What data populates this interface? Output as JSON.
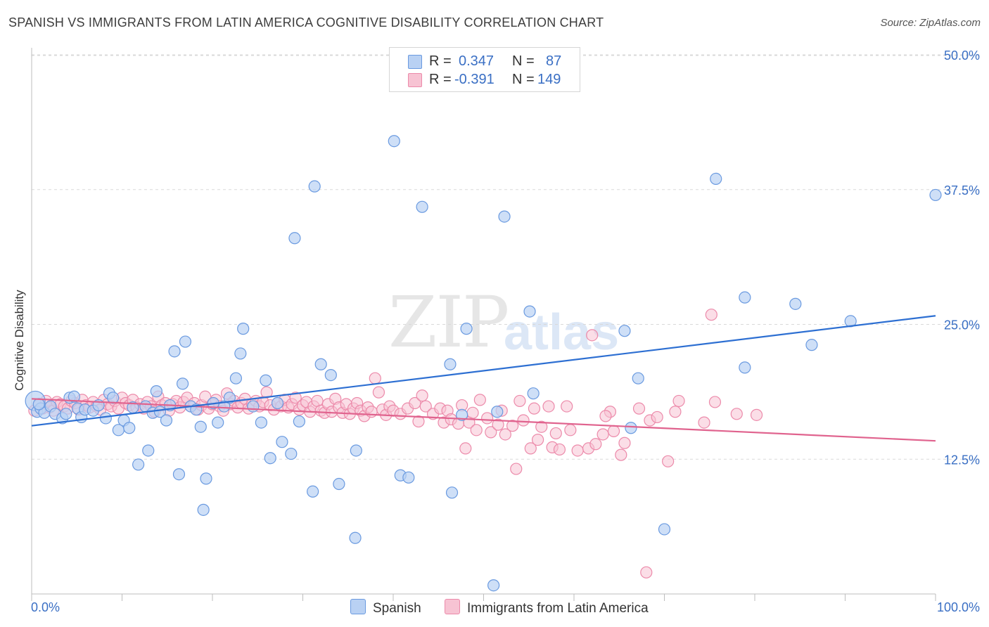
{
  "header": {
    "title": "SPANISH VS IMMIGRANTS FROM LATIN AMERICA COGNITIVE DISABILITY CORRELATION CHART",
    "source": "Source: ZipAtlas.com"
  },
  "watermark": {
    "zip": "ZIP",
    "atlas": "atlas"
  },
  "legend": {
    "series1": {
      "r_label": "R = ",
      "r_value": "0.347",
      "n_label": "N = ",
      "n_value": "87"
    },
    "series2": {
      "r_label": "R = ",
      "r_value": "-0.391",
      "n_label": "N = ",
      "n_value": "149"
    }
  },
  "bottom_legend": {
    "spanish": "Spanish",
    "immigrants": "Immigrants from Latin America"
  },
  "colors": {
    "blue_fill": "#b9d1f3",
    "blue_stroke": "#6a9ae0",
    "blue_line": "#2d6fd2",
    "pink_fill": "#f7c3d3",
    "pink_stroke": "#ec8aaa",
    "pink_line": "#e0638e",
    "tick_text": "#3a6fc4",
    "grid": "#d9d9d9"
  },
  "chart_data": {
    "type": "scatter",
    "title": "SPANISH VS IMMIGRANTS FROM LATIN AMERICA COGNITIVE DISABILITY CORRELATION CHART",
    "xlabel": "",
    "ylabel": "Cognitive Disability",
    "xlim": [
      0,
      100
    ],
    "ylim": [
      0,
      52
    ],
    "x_tick_labels": [
      "0.0%",
      "100.0%"
    ],
    "y_ticks": [
      12.5,
      25.0,
      37.5,
      50.0
    ],
    "y_tick_labels": [
      "12.5%",
      "25.0%",
      "37.5%",
      "50.0%"
    ],
    "grid": true,
    "legend_position": "top-center",
    "series": [
      {
        "name": "Spanish",
        "r": 0.347,
        "n": 87,
        "trend": {
          "x": [
            0,
            100
          ],
          "y": [
            15.6,
            25.8
          ]
        },
        "points": [
          [
            0.4,
            17.9
          ],
          [
            0.6,
            16.9
          ],
          [
            1.0,
            17.2
          ],
          [
            1.4,
            16.8
          ],
          [
            2.1,
            17.4
          ],
          [
            2.6,
            16.7
          ],
          [
            3.4,
            16.3
          ],
          [
            3.8,
            16.7
          ],
          [
            4.2,
            18.2
          ],
          [
            4.7,
            18.3
          ],
          [
            5.1,
            17.2
          ],
          [
            5.5,
            16.4
          ],
          [
            5.9,
            17.1
          ],
          [
            6.8,
            17.0
          ],
          [
            7.4,
            17.5
          ],
          [
            8.2,
            16.3
          ],
          [
            8.6,
            18.6
          ],
          [
            9.0,
            18.2
          ],
          [
            9.6,
            15.2
          ],
          [
            10.2,
            16.1
          ],
          [
            10.8,
            15.4
          ],
          [
            11.2,
            17.3
          ],
          [
            11.8,
            12.0
          ],
          [
            12.6,
            17.4
          ],
          [
            12.9,
            13.3
          ],
          [
            13.4,
            16.8
          ],
          [
            13.8,
            18.8
          ],
          [
            14.2,
            16.9
          ],
          [
            14.9,
            16.1
          ],
          [
            15.3,
            17.5
          ],
          [
            15.8,
            22.5
          ],
          [
            16.3,
            11.1
          ],
          [
            16.7,
            19.5
          ],
          [
            17.0,
            23.4
          ],
          [
            17.6,
            17.4
          ],
          [
            18.2,
            17.1
          ],
          [
            18.7,
            15.5
          ],
          [
            19.0,
            7.8
          ],
          [
            19.3,
            10.7
          ],
          [
            20.1,
            17.7
          ],
          [
            20.6,
            15.9
          ],
          [
            21.3,
            17.4
          ],
          [
            21.9,
            18.2
          ],
          [
            22.6,
            20.0
          ],
          [
            23.1,
            22.3
          ],
          [
            23.4,
            24.6
          ],
          [
            24.5,
            17.4
          ],
          [
            25.4,
            15.9
          ],
          [
            25.9,
            19.8
          ],
          [
            26.4,
            12.6
          ],
          [
            27.2,
            17.7
          ],
          [
            27.7,
            14.1
          ],
          [
            28.7,
            13.0
          ],
          [
            29.1,
            33.0
          ],
          [
            29.6,
            16.0
          ],
          [
            31.1,
            9.5
          ],
          [
            31.3,
            37.8
          ],
          [
            32.0,
            21.3
          ],
          [
            33.1,
            20.3
          ],
          [
            34.0,
            10.2
          ],
          [
            35.8,
            5.2
          ],
          [
            35.9,
            13.3
          ],
          [
            40.1,
            42.0
          ],
          [
            40.8,
            11.0
          ],
          [
            41.7,
            10.8
          ],
          [
            43.2,
            35.9
          ],
          [
            46.3,
            21.3
          ],
          [
            46.5,
            9.4
          ],
          [
            47.6,
            16.6
          ],
          [
            48.1,
            24.6
          ],
          [
            51.1,
            0.8
          ],
          [
            51.5,
            16.9
          ],
          [
            52.3,
            35.0
          ],
          [
            55.1,
            26.2
          ],
          [
            55.5,
            18.6
          ],
          [
            65.6,
            24.4
          ],
          [
            66.3,
            15.4
          ],
          [
            67.1,
            20.0
          ],
          [
            70.0,
            6.0
          ],
          [
            75.7,
            38.5
          ],
          [
            78.9,
            27.5
          ],
          [
            78.9,
            21.0
          ],
          [
            84.5,
            26.9
          ],
          [
            86.3,
            23.1
          ],
          [
            90.6,
            25.3
          ],
          [
            100.0,
            37.0
          ],
          [
            0.8,
            17.6
          ]
        ]
      },
      {
        "name": "Immigrants from Latin America",
        "r": -0.391,
        "n": 149,
        "trend": {
          "x": [
            0,
            100
          ],
          "y": [
            18.1,
            14.2
          ]
        },
        "points": [
          [
            0.3,
            17.0
          ],
          [
            0.8,
            17.5
          ],
          [
            1.2,
            17.2
          ],
          [
            1.6,
            17.9
          ],
          [
            2.0,
            17.3
          ],
          [
            2.4,
            17.0
          ],
          [
            2.8,
            17.8
          ],
          [
            3.2,
            17.6
          ],
          [
            3.6,
            17.4
          ],
          [
            4.0,
            17.2
          ],
          [
            4.4,
            17.9
          ],
          [
            4.8,
            17.7
          ],
          [
            5.2,
            17.1
          ],
          [
            5.6,
            18.0
          ],
          [
            6.0,
            17.5
          ],
          [
            6.4,
            17.3
          ],
          [
            6.8,
            17.8
          ],
          [
            7.2,
            17.4
          ],
          [
            7.6,
            17.1
          ],
          [
            8.0,
            18.0
          ],
          [
            8.4,
            17.6
          ],
          [
            8.8,
            17.4
          ],
          [
            9.2,
            17.9
          ],
          [
            9.6,
            17.2
          ],
          [
            10.0,
            18.2
          ],
          [
            10.4,
            17.7
          ],
          [
            10.8,
            17.5
          ],
          [
            11.2,
            18.0
          ],
          [
            11.6,
            17.3
          ],
          [
            12.0,
            17.6
          ],
          [
            12.4,
            17.2
          ],
          [
            12.8,
            17.8
          ],
          [
            13.2,
            17.4
          ],
          [
            13.6,
            16.9
          ],
          [
            14.0,
            18.3
          ],
          [
            14.4,
            17.5
          ],
          [
            14.8,
            17.7
          ],
          [
            15.2,
            17.0
          ],
          [
            15.6,
            17.6
          ],
          [
            16.0,
            17.9
          ],
          [
            16.4,
            17.3
          ],
          [
            16.8,
            17.8
          ],
          [
            17.2,
            18.2
          ],
          [
            17.6,
            17.4
          ],
          [
            18.0,
            17.7
          ],
          [
            18.4,
            17.1
          ],
          [
            18.8,
            17.5
          ],
          [
            19.2,
            18.3
          ],
          [
            19.6,
            17.2
          ],
          [
            20.0,
            17.6
          ],
          [
            20.4,
            18.0
          ],
          [
            20.8,
            17.4
          ],
          [
            21.2,
            17.0
          ],
          [
            21.6,
            18.6
          ],
          [
            22.0,
            17.6
          ],
          [
            22.4,
            17.9
          ],
          [
            22.8,
            17.3
          ],
          [
            23.2,
            17.7
          ],
          [
            23.6,
            18.1
          ],
          [
            24.0,
            17.2
          ],
          [
            24.4,
            17.6
          ],
          [
            24.8,
            17.9
          ],
          [
            25.2,
            17.4
          ],
          [
            25.6,
            17.8
          ],
          [
            26.0,
            18.7
          ],
          [
            26.4,
            17.5
          ],
          [
            26.8,
            17.1
          ],
          [
            27.2,
            17.7
          ],
          [
            27.6,
            17.4
          ],
          [
            28.0,
            18.0
          ],
          [
            28.4,
            17.3
          ],
          [
            28.8,
            17.6
          ],
          [
            29.2,
            18.2
          ],
          [
            29.6,
            17.1
          ],
          [
            30.0,
            17.5
          ],
          [
            30.4,
            17.8
          ],
          [
            30.8,
            16.9
          ],
          [
            31.2,
            17.4
          ],
          [
            31.6,
            17.9
          ],
          [
            32.0,
            17.0
          ],
          [
            32.4,
            16.8
          ],
          [
            32.8,
            17.6
          ],
          [
            33.2,
            16.9
          ],
          [
            33.6,
            18.1
          ],
          [
            34.0,
            17.3
          ],
          [
            34.4,
            16.8
          ],
          [
            34.8,
            17.6
          ],
          [
            35.2,
            16.7
          ],
          [
            35.6,
            17.2
          ],
          [
            36.0,
            17.7
          ],
          [
            36.4,
            17.0
          ],
          [
            36.8,
            16.5
          ],
          [
            37.2,
            17.3
          ],
          [
            37.6,
            16.9
          ],
          [
            38.0,
            20.0
          ],
          [
            38.4,
            18.7
          ],
          [
            38.8,
            17.1
          ],
          [
            39.2,
            16.6
          ],
          [
            39.6,
            17.4
          ],
          [
            40.0,
            17.0
          ],
          [
            40.8,
            16.7
          ],
          [
            41.6,
            17.2
          ],
          [
            42.4,
            17.7
          ],
          [
            42.8,
            16.0
          ],
          [
            43.2,
            18.4
          ],
          [
            43.6,
            17.4
          ],
          [
            44.4,
            16.7
          ],
          [
            45.2,
            17.2
          ],
          [
            45.6,
            15.9
          ],
          [
            46.0,
            17.0
          ],
          [
            46.4,
            16.2
          ],
          [
            47.2,
            15.8
          ],
          [
            47.6,
            17.5
          ],
          [
            48.0,
            13.5
          ],
          [
            48.4,
            15.9
          ],
          [
            48.8,
            16.8
          ],
          [
            49.2,
            15.2
          ],
          [
            49.6,
            18.0
          ],
          [
            50.4,
            16.3
          ],
          [
            50.8,
            15.0
          ],
          [
            51.6,
            15.7
          ],
          [
            52.0,
            17.0
          ],
          [
            52.4,
            14.8
          ],
          [
            53.2,
            15.6
          ],
          [
            53.6,
            11.6
          ],
          [
            54.0,
            17.9
          ],
          [
            54.4,
            16.1
          ],
          [
            55.2,
            13.5
          ],
          [
            55.6,
            17.2
          ],
          [
            56.0,
            14.3
          ],
          [
            56.4,
            15.5
          ],
          [
            57.2,
            17.4
          ],
          [
            57.6,
            13.6
          ],
          [
            58.0,
            14.9
          ],
          [
            58.4,
            13.4
          ],
          [
            59.2,
            17.4
          ],
          [
            59.6,
            15.2
          ],
          [
            60.4,
            13.3
          ],
          [
            61.6,
            13.5
          ],
          [
            62.0,
            24.0
          ],
          [
            62.4,
            13.9
          ],
          [
            63.2,
            14.8
          ],
          [
            64.0,
            16.9
          ],
          [
            64.4,
            15.1
          ],
          [
            65.2,
            12.9
          ],
          [
            65.6,
            14.0
          ],
          [
            67.2,
            17.2
          ],
          [
            68.4,
            16.1
          ],
          [
            69.2,
            16.4
          ],
          [
            70.4,
            12.3
          ],
          [
            71.6,
            17.9
          ],
          [
            75.2,
            25.9
          ],
          [
            75.6,
            17.8
          ],
          [
            78.0,
            16.7
          ],
          [
            80.2,
            16.6
          ],
          [
            68.0,
            2.0
          ],
          [
            63.5,
            16.5
          ],
          [
            74.4,
            15.9
          ],
          [
            71.2,
            16.9
          ]
        ]
      }
    ]
  }
}
